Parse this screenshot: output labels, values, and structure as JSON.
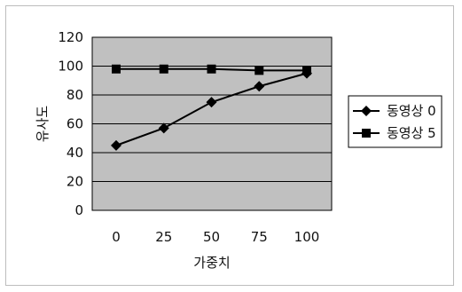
{
  "chart_data": {
    "type": "line",
    "xlabel": "가중치",
    "ylabel": "유사도",
    "x": [
      0,
      25,
      50,
      75,
      100
    ],
    "xticks": [
      "0",
      "25",
      "50",
      "75",
      "100"
    ],
    "ylim": [
      0,
      120
    ],
    "yticks": [
      "0",
      "20",
      "40",
      "60",
      "80",
      "100",
      "120"
    ],
    "grid": true,
    "legend_position": "right",
    "plot_background": "#c0c0c0",
    "series": [
      {
        "name": "동영상 0",
        "marker": "diamond",
        "color": "#000000",
        "values": [
          45,
          57,
          75,
          86,
          95
        ]
      },
      {
        "name": "동영상 5",
        "marker": "square",
        "color": "#000000",
        "values": [
          98,
          98,
          98,
          97,
          97
        ]
      }
    ]
  }
}
